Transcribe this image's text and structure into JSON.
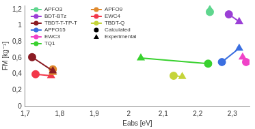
{
  "chart_data": {
    "type": "scatter",
    "x_label": "Eabs [eV]",
    "y_label": "FM [kg⁻¹]",
    "xlim": [
      1.7,
      2.35
    ],
    "xticks": [
      {
        "value": 1.7,
        "label": "1,7"
      },
      {
        "value": 1.8,
        "label": "1,8"
      },
      {
        "value": 1.9,
        "label": "1,9"
      },
      2,
      {
        "value": 2.1,
        "label": "2,1"
      },
      {
        "value": 2.2,
        "label": "2,2"
      },
      {
        "value": 2.3,
        "label": "2,3"
      }
    ],
    "ylim": [
      0,
      1.25
    ],
    "yticks": [
      0,
      {
        "value": 0.2,
        "label": "0,2"
      },
      {
        "value": 0.4,
        "label": "0,4"
      },
      {
        "value": 0.6,
        "label": "0,6"
      },
      {
        "value": 0.8,
        "label": "0,8"
      },
      1,
      {
        "value": 1.2,
        "label": "1,2"
      }
    ],
    "grid": false,
    "legend": "top-left",
    "line_style": "solid",
    "point_legend": [
      {
        "name": "Calculated",
        "marker": "circle"
      },
      {
        "name": "Experimental",
        "marker": "triangle"
      }
    ],
    "series": [
      {
        "name": "APFO3",
        "color": "#5fd68e",
        "x": [
          2.235,
          2.235
        ],
        "values": [
          1.17,
          1.2
        ]
      },
      {
        "name": "BDT-BTz",
        "color": "#9b3fd6",
        "x": [
          2.29,
          2.32
        ],
        "values": [
          1.14,
          1.05
        ]
      },
      {
        "name": "TBDT-T-TP-T",
        "color": "#8b1c24",
        "x": [
          1.72,
          1.78
        ],
        "values": [
          0.61,
          0.44
        ]
      },
      {
        "name": "APFO15",
        "color": "#3b6fe0",
        "x": [
          2.27,
          2.32
        ],
        "values": [
          0.55,
          0.72
        ]
      },
      {
        "name": "EWC3",
        "color": "#f043c8",
        "x": [
          2.34,
          2.33
        ],
        "values": [
          0.55,
          0.61
        ]
      },
      {
        "name": "TQ1",
        "color": "#39d12f",
        "x": [
          2.23,
          2.035
        ],
        "values": [
          0.53,
          0.6
        ]
      },
      {
        "name": "APFO9",
        "color": "#e08a2e",
        "x": [
          1.78,
          1.78
        ],
        "values": [
          0.46,
          0.42
        ]
      },
      {
        "name": "EWC4",
        "color": "#f2384a",
        "x": [
          1.73,
          1.775
        ],
        "values": [
          0.4,
          0.38
        ]
      },
      {
        "name": "TBDT-Q",
        "color": "#c5d43a",
        "x": [
          2.13,
          2.155
        ],
        "values": [
          0.38,
          0.37
        ]
      }
    ]
  }
}
